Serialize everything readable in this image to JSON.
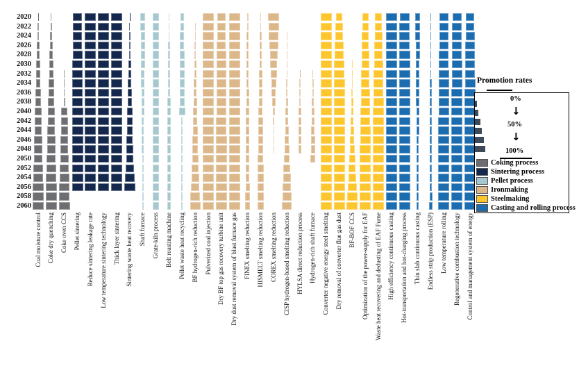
{
  "legend": {
    "title": "Promotion rates",
    "scale_labels": [
      "0%",
      "50%",
      "100%"
    ],
    "groups": [
      {
        "label": "Coking process",
        "color": "#6d6e71"
      },
      {
        "label": "Sintering process",
        "color": "#14284e"
      },
      {
        "label": "Pellet process",
        "color": "#a5c8ce"
      },
      {
        "label": "Ironmaking",
        "color": "#dcb78a"
      },
      {
        "label": "Steelmaking",
        "color": "#fdc62f"
      },
      {
        "label": "Casting and rolling process",
        "color": "#1c6cb0"
      }
    ]
  },
  "chart_data": {
    "type": "heatmap",
    "value_encoding": "bar-width",
    "value_unit": "promotion rate %",
    "value_range": [
      0,
      100
    ],
    "years": [
      2020,
      2022,
      2024,
      2026,
      2028,
      2030,
      2032,
      2034,
      2036,
      2038,
      2040,
      2042,
      2044,
      2046,
      2048,
      2050,
      2052,
      2054,
      2056,
      2058,
      2060
    ],
    "groups": [
      {
        "name": "Coking process",
        "color": "#6d6e71",
        "technologies": [
          {
            "name": "Coal moisture control",
            "rates": [
              2,
              8,
              15,
              22,
              28,
              33,
              38,
              43,
              48,
              53,
              58,
              62,
              66,
              70,
              74,
              78,
              83,
              90,
              95,
              98,
              100
            ]
          },
          {
            "name": "Coke dry quenching",
            "rates": [
              5,
              12,
              18,
              25,
              31,
              36,
              41,
              46,
              51,
              56,
              61,
              65,
              69,
              73,
              77,
              81,
              87,
              93,
              98,
              100,
              100
            ]
          },
          {
            "name": "Coke oven CCS",
            "rates": [
              0,
              0,
              0,
              0,
              0,
              0,
              3,
              6,
              10,
              14,
              58,
              61,
              64,
              67,
              71,
              75,
              80,
              86,
              92,
              96,
              100
            ]
          }
        ]
      },
      {
        "name": "Sintering process",
        "color": "#14284e",
        "technologies": [
          {
            "name": "Pellet sintering",
            "rates": [
              80,
              82,
              84,
              86,
              88,
              90,
              92,
              94,
              96,
              98,
              100,
              100,
              100,
              100,
              100,
              100,
              100,
              100,
              100,
              0,
              0
            ]
          },
          {
            "name": "Reduce sintering leakage rate",
            "rates": [
              100,
              100,
              100,
              100,
              100,
              100,
              100,
              100,
              100,
              100,
              100,
              100,
              100,
              100,
              100,
              100,
              100,
              100,
              100,
              0,
              0
            ]
          },
          {
            "name": "Low temperature sintering technology",
            "rates": [
              100,
              100,
              100,
              100,
              100,
              100,
              100,
              100,
              100,
              100,
              100,
              100,
              100,
              100,
              100,
              100,
              100,
              100,
              100,
              0,
              0
            ]
          },
          {
            "name": "Thick layer sintering",
            "rates": [
              100,
              100,
              100,
              100,
              100,
              100,
              100,
              100,
              100,
              100,
              100,
              100,
              100,
              100,
              100,
              100,
              100,
              100,
              100,
              0,
              0
            ]
          },
          {
            "name": "Sintering waste heat recovery",
            "rates": [
              4,
              7,
              10,
              14,
              18,
              22,
              27,
              32,
              37,
              42,
              47,
              50,
              53,
              57,
              61,
              66,
              72,
              83,
              100,
              0,
              0
            ]
          }
        ]
      },
      {
        "name": "Pellet process",
        "color": "#a5c8ce",
        "technologies": [
          {
            "name": "Shaft furnace",
            "rates": [
              44,
              42,
              40,
              38,
              36,
              34,
              31,
              29,
              27,
              25,
              23,
              21,
              19,
              18,
              17,
              16,
              15,
              14,
              13,
              13,
              13
            ]
          },
          {
            "name": "Grate-kiln process",
            "rates": [
              54,
              54,
              55,
              55,
              56,
              56,
              57,
              57,
              58,
              58,
              58,
              57,
              57,
              56,
              56,
              55,
              55,
              54,
              54,
              54,
              54
            ]
          },
          {
            "name": "Belt roasting machine",
            "rates": [
              8,
              10,
              12,
              14,
              16,
              18,
              20,
              22,
              24,
              26,
              28,
              29,
              30,
              30,
              30,
              30,
              30,
              29,
              29,
              28,
              28
            ]
          },
          {
            "name": "Pellet waste heat recycling",
            "rates": [
              32,
              34,
              36,
              38,
              40,
              41,
              42,
              43,
              44,
              46,
              55,
              11,
              11,
              11,
              11,
              11,
              11,
              11,
              11,
              11,
              11
            ]
          }
        ]
      },
      {
        "name": "Ironmaking",
        "color": "#dcb78a",
        "technologies": [
          {
            "name": "BF hydrogen-rich reduction",
            "rates": [
              0,
              4,
              6,
              9,
              12,
              17,
              21,
              25,
              28,
              31,
              35,
              40,
              44,
              48,
              53,
              58,
              64,
              70,
              77,
              85,
              92
            ]
          },
          {
            "name": "Pulverized coal injection",
            "rates": [
              100,
              100,
              100,
              100,
              100,
              100,
              100,
              100,
              100,
              100,
              100,
              100,
              100,
              100,
              100,
              100,
              100,
              100,
              100,
              100,
              100
            ]
          },
          {
            "name": "Dry BF top gas recovery turbine unit",
            "rates": [
              75,
              77,
              79,
              81,
              83,
              85,
              86,
              88,
              90,
              91,
              92,
              93,
              94,
              96,
              97,
              98,
              100,
              100,
              100,
              100,
              100
            ]
          },
          {
            "name": "Dry dust removal system of blast furnace gas",
            "rates": [
              100,
              100,
              100,
              100,
              100,
              100,
              100,
              100,
              100,
              100,
              100,
              100,
              100,
              100,
              100,
              100,
              100,
              100,
              100,
              100,
              100
            ]
          },
          {
            "name": "FINEX smelting reduction",
            "rates": [
              12,
              13,
              15,
              16,
              18,
              19,
              21,
              22,
              24,
              25,
              27,
              28,
              30,
              31,
              33,
              34,
              35,
              36,
              38,
              39,
              40
            ]
          },
          {
            "name": "HISMELT smelting reduction",
            "rates": [
              8,
              11,
              14,
              17,
              20,
              23,
              26,
              29,
              31,
              34,
              37,
              40,
              42,
              45,
              47,
              50,
              52,
              54,
              56,
              57,
              58
            ]
          },
          {
            "name": "COREX smelting reduction",
            "rates": [
              100,
              95,
              88,
              80,
              72,
              63,
              55,
              46,
              38,
              30,
              22,
              15,
              8,
              4,
              2,
              0,
              0,
              0,
              0,
              0,
              0
            ]
          },
          {
            "name": "CISP hydrogen-based smelting reduction",
            "rates": [
              0,
              0,
              2,
              3,
              4,
              5,
              6,
              9,
              13,
              17,
              21,
              26,
              31,
              38,
              44,
              52,
              60,
              67,
              75,
              83,
              90
            ]
          },
          {
            "name": "HYLSA direct reduction process",
            "rates": [
              0,
              0,
              0,
              0,
              0,
              0,
              4,
              8,
              12,
              17,
              21,
              25,
              29,
              31,
              31,
              0,
              0,
              0,
              0,
              0,
              0
            ]
          },
          {
            "name": "Hydrogen-rich shaft furnace",
            "rates": [
              0,
              0,
              0,
              0,
              0,
              0,
              6,
              10,
              15,
              19,
              25,
              29,
              33,
              37,
              40,
              42,
              0,
              0,
              0,
              0,
              0
            ]
          }
        ]
      },
      {
        "name": "Steelmaking",
        "color": "#fdc62f",
        "technologies": [
          {
            "name": "Converter negative energy steel smelting",
            "rates": [
              100,
              100,
              100,
              100,
              100,
              100,
              100,
              100,
              100,
              100,
              100,
              100,
              100,
              100,
              100,
              100,
              100,
              100,
              100,
              100,
              100
            ]
          },
          {
            "name": "Dry removal of converter flue gas dust",
            "rates": [
              62,
              68,
              74,
              80,
              85,
              90,
              95,
              100,
              100,
              100,
              100,
              100,
              100,
              100,
              100,
              100,
              100,
              100,
              100,
              100,
              100
            ]
          },
          {
            "name": "BF-BOF CCS",
            "rates": [
              0,
              0,
              0,
              0,
              0,
              4,
              6,
              10,
              13,
              17,
              21,
              25,
              31,
              38,
              46,
              54,
              63,
              71,
              79,
              92,
              100
            ]
          },
          {
            "name": "Optimization of the power-supply for EAF",
            "rates": [
              55,
              58,
              61,
              64,
              67,
              70,
              73,
              76,
              79,
              82,
              85,
              88,
              91,
              95,
              100,
              100,
              100,
              100,
              100,
              100,
              100
            ]
          },
          {
            "name": "Waste heat recovering and dedusting of EAF Fume",
            "rates": [
              62,
              66,
              70,
              74,
              78,
              81,
              84,
              87,
              90,
              93,
              96,
              100,
              100,
              100,
              100,
              100,
              100,
              100,
              100,
              100,
              100
            ]
          }
        ]
      },
      {
        "name": "Casting and rolling process",
        "color": "#1c6cb0",
        "technologies": [
          {
            "name": "High efficiency continuous casting",
            "rates": [
              100,
              100,
              100,
              100,
              100,
              100,
              100,
              100,
              100,
              100,
              100,
              100,
              100,
              100,
              100,
              100,
              100,
              100,
              100,
              100,
              100
            ]
          },
          {
            "name": "Hot-transportation and hot-charging process",
            "rates": [
              90,
              92,
              94,
              96,
              98,
              100,
              100,
              100,
              100,
              100,
              100,
              100,
              100,
              100,
              100,
              100,
              100,
              100,
              100,
              100,
              100
            ]
          },
          {
            "name": "Thin slab continuous casting",
            "rates": [
              45,
              43,
              41,
              39,
              37,
              35,
              33,
              31,
              29,
              27,
              26,
              25,
              24,
              23,
              22,
              21,
              21,
              20,
              20,
              19,
              18
            ]
          },
          {
            "name": "Endless strip production (ESP)",
            "rates": [
              6,
              7,
              8,
              9,
              10,
              11,
              12,
              13,
              14,
              15,
              16,
              17,
              18,
              19,
              20,
              21,
              22,
              23,
              24,
              25,
              26
            ]
          },
          {
            "name": "Low temperature rolling",
            "rates": [
              78,
              80,
              82,
              84,
              86,
              88,
              90,
              92,
              94,
              96,
              98,
              100,
              100,
              100,
              100,
              100,
              100,
              100,
              100,
              100,
              100
            ]
          },
          {
            "name": "Regenerative combustion technology",
            "rates": [
              82,
              84,
              86,
              88,
              90,
              92,
              94,
              96,
              98,
              100,
              100,
              100,
              100,
              100,
              100,
              100,
              100,
              100,
              100,
              100,
              100
            ]
          },
          {
            "name": "Control and management system of energy",
            "rates": [
              75,
              78,
              81,
              84,
              87,
              90,
              92,
              94,
              96,
              98,
              100,
              100,
              100,
              100,
              100,
              100,
              100,
              100,
              100,
              100,
              100
            ]
          }
        ]
      }
    ]
  }
}
